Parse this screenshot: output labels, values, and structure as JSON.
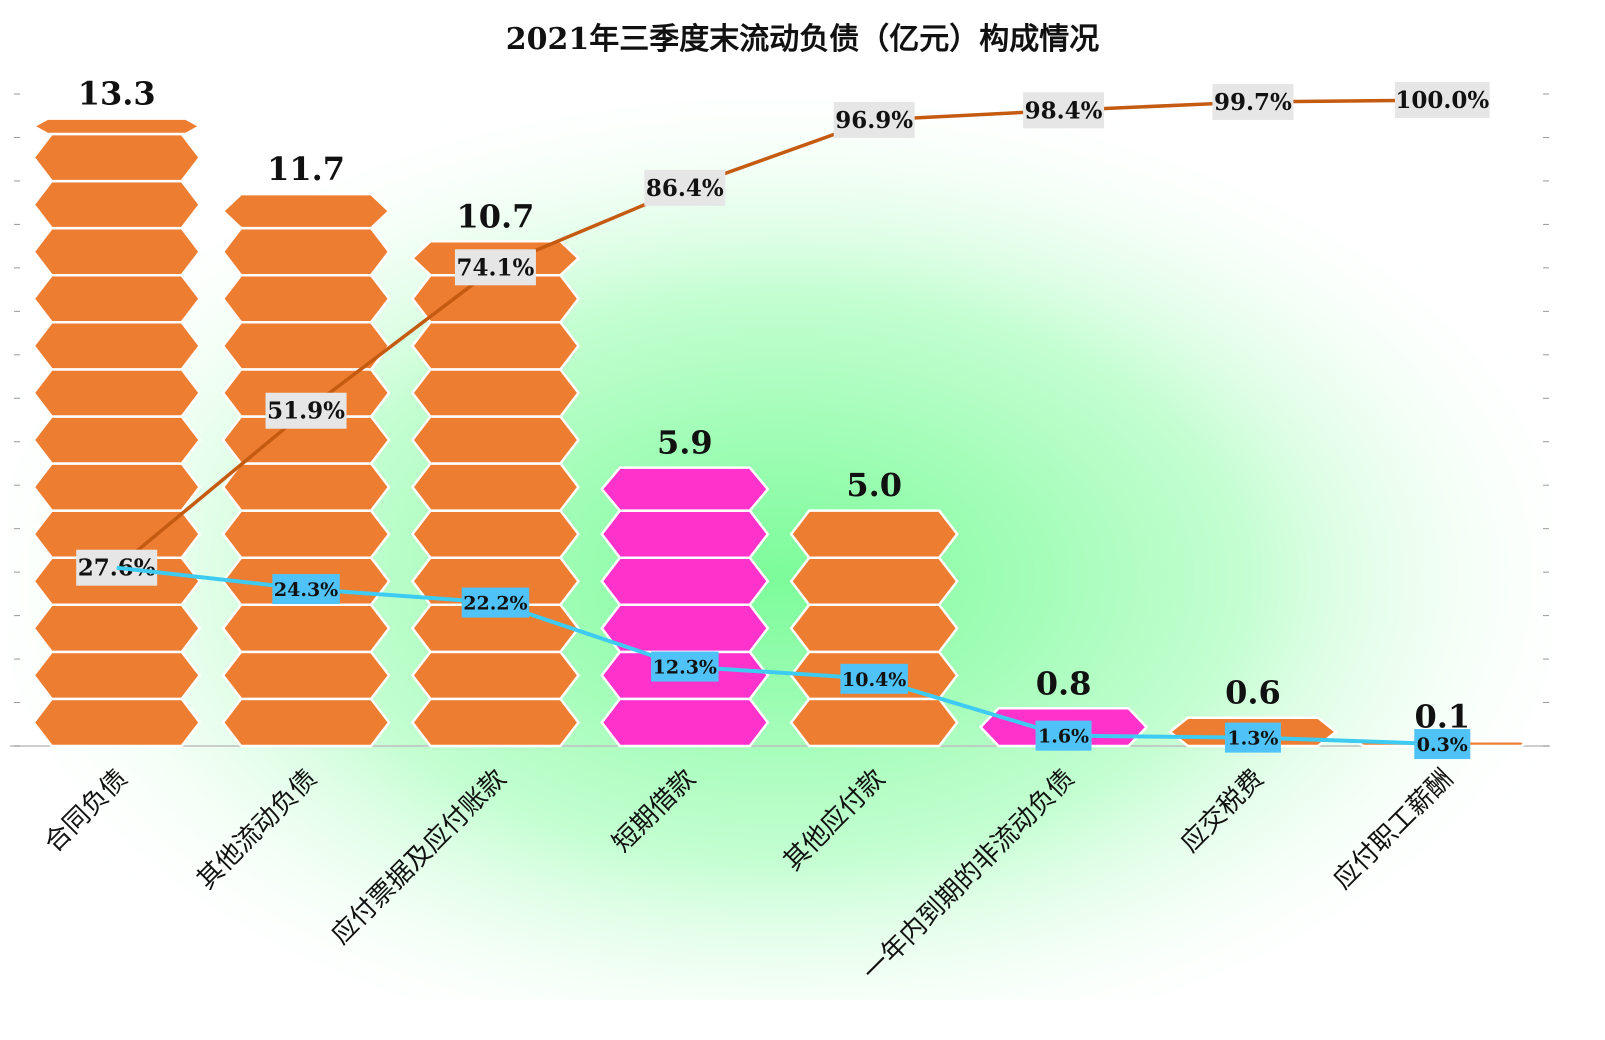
{
  "chart_data": {
    "type": "bar",
    "title": "2021年三季度末流动负债（亿元）构成情况",
    "categories": [
      "合同负债",
      "其他流动负债",
      "应付票据及应付账款",
      "短期借款",
      "其他应付款",
      "一年内到期的非流动负债",
      "应交税费",
      "应付职工薪酬"
    ],
    "values": [
      13.3,
      11.7,
      10.7,
      5.9,
      5.0,
      0.8,
      0.6,
      0.1
    ],
    "value_labels": [
      "13.3",
      "11.7",
      "10.7",
      "5.9",
      "5.0",
      "0.8",
      "0.6",
      "0.1"
    ],
    "highlight_categories": [
      "短期借款",
      "一年内到期的非流动负债"
    ],
    "lines": [
      {
        "values": [
          27.6,
          51.9,
          74.1,
          86.4,
          96.9,
          98.4,
          99.7,
          100.0
        ],
        "labels": [
          "27.6%",
          "51.9%",
          "74.1%",
          "86.4%",
          "96.9%",
          "98.4%",
          "99.7%",
          "100.0%"
        ]
      },
      {
        "values": [
          27.6,
          24.3,
          22.2,
          12.3,
          10.4,
          1.6,
          1.3,
          0.3
        ],
        "labels": [
          "27.6%",
          "24.3%",
          "22.2%",
          "12.3%",
          "10.4%",
          "1.6%",
          "1.3%",
          "0.3%"
        ]
      }
    ],
    "ylim_bars": [
      0,
      14.5
    ],
    "ylim_lines": [
      0,
      100
    ],
    "grid": false,
    "legend": "none"
  },
  "colors": {
    "bar": "#ED7D31",
    "highlight": "#FF33CC",
    "hex_border": "#ffffff",
    "cumulative_line": "#C55A11",
    "share_line": "#3ECBF2",
    "cumulative_label_bg": "#E7E6E6",
    "share_label_bg": "#4FC3F7",
    "background_glow": "#7CFC9A"
  }
}
